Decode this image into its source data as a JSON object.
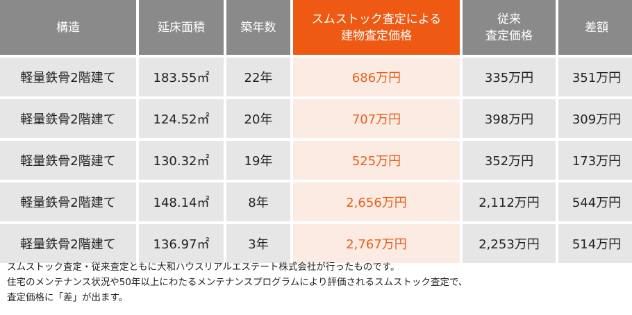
{
  "table": {
    "headers": [
      "構造",
      "延床面積",
      "築年数",
      "スムストック査定による\n建物査定価格",
      "従来\n査定価格",
      "差額"
    ],
    "rows": [
      [
        "軽量鉄骨2階建て",
        "183.55㎡",
        "22年",
        "686万円",
        "335万円",
        "351万円"
      ],
      [
        "軽量鉄骨2階建て",
        "124.52㎡",
        "20年",
        "707万円",
        "398万円",
        "309万円"
      ],
      [
        "軽量鉄骨2階建て",
        "130.32㎡",
        "19年",
        "525万円",
        "352万円",
        "173万円"
      ],
      [
        "軽量鉄骨2階建て",
        "148.14㎡",
        "8年",
        "2,656万円",
        "2,112万円",
        "544万円"
      ],
      [
        "軽量鉄骨2階建て",
        "136.97㎡",
        "3年",
        "2,767万円",
        "2,253万円",
        "514万円"
      ]
    ]
  },
  "notes": [
    "スムストック査定・従来査定ともに大和ハウスリアルエステート株式会社が行ったものです。",
    "住宅のメンテナンス状況や50年以上にわたるメンテナンスプログラムにより評価されるスムストック査定で、",
    "査定価格に「差」が出ます。"
  ],
  "colors": {
    "header_gray": "#8a8a8a",
    "header_accent": "#ee5a14",
    "cell_gray": "#e6e6e6",
    "cell_accent_bg": "#fbebe3",
    "accent_text": "#e8601a"
  }
}
